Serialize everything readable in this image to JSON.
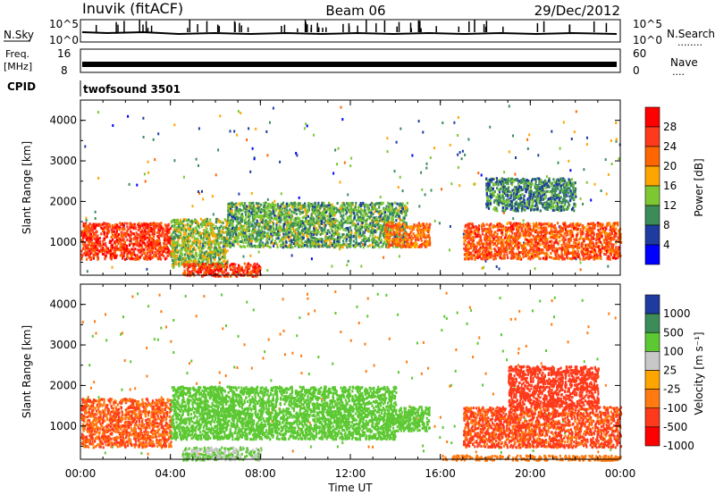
{
  "header": {
    "site": "Inuvik (fitACF)",
    "beam": "Beam 06",
    "date": "29/Dec/2012"
  },
  "left_labels": {
    "nsky": "N.Sky",
    "freq": "Freq.",
    "mhz": "[MHz]",
    "cpid": "CPID"
  },
  "right_labels": {
    "nsearch": "N.Search",
    "nsearch_dots": "........",
    "nave": "Nave",
    "nave_dots": "....",
    "nsky_top": "10^5",
    "nsky_bottom": "10^0",
    "nave_top": "60",
    "nave_bottom": "0"
  },
  "freq_ticks": {
    "top": "16",
    "bottom": "8"
  },
  "cpid_text": "twofsound 3501",
  "time_axis": {
    "label": "Time UT",
    "ticks": [
      "00:00",
      "04:00",
      "08:00",
      "12:00",
      "16:00",
      "20:00",
      "00:00"
    ]
  },
  "power_colorbar": {
    "label": "Power [dB]",
    "ticks": [
      "28",
      "24",
      "20",
      "16",
      "12",
      "8",
      "4"
    ],
    "colors": [
      "#ff0000",
      "#ff3a1a",
      "#ff6600",
      "#ffa500",
      "#7dc832",
      "#3c8c5a",
      "#1e3ca0",
      "#0000ff"
    ]
  },
  "velocity_colorbar": {
    "label": "Velocity [m s⁻¹]",
    "ticks": [
      "1000",
      "500",
      "100",
      "25",
      "-25",
      "-100",
      "-500",
      "-1000"
    ],
    "colors": [
      "#1e3ca0",
      "#3c8c5a",
      "#5cc832",
      "#c8c8c8",
      "#ffa500",
      "#ff7a10",
      "#ff3a1a",
      "#ff0000"
    ]
  },
  "chart_data": [
    {
      "type": "heatmap",
      "title": "Power",
      "xlabel": "Time UT",
      "ylabel": "Slant Range [km]",
      "x_range_hours": [
        0,
        24
      ],
      "ylim": [
        180,
        4500
      ],
      "y_ticks": [
        1000,
        2000,
        3000,
        4000
      ],
      "colorbar_label": "Power [dB]",
      "colorbar_ticks": [
        4,
        8,
        12,
        16,
        20,
        24,
        28
      ],
      "regions": [
        {
          "x": [
            0,
            4
          ],
          "y": [
            600,
            1500
          ],
          "value": 28
        },
        {
          "x": [
            4,
            6.5
          ],
          "y": [
            400,
            1600
          ],
          "value": 16
        },
        {
          "x": [
            4.5,
            8
          ],
          "y": [
            180,
            500
          ],
          "value": 28
        },
        {
          "x": [
            6.5,
            14.5
          ],
          "y": [
            900,
            2000
          ],
          "value": 14
        },
        {
          "x": [
            13.5,
            15.5
          ],
          "y": [
            900,
            1500
          ],
          "value": 24
        },
        {
          "x": [
            17,
            24
          ],
          "y": [
            600,
            1500
          ],
          "value": 26
        },
        {
          "x": [
            18,
            22
          ],
          "y": [
            1800,
            2600
          ],
          "value": 12
        }
      ]
    },
    {
      "type": "heatmap",
      "title": "Velocity",
      "xlabel": "Time UT",
      "ylabel": "Slant Range [km]",
      "x_range_hours": [
        0,
        24
      ],
      "ylim": [
        180,
        4500
      ],
      "y_ticks": [
        1000,
        2000,
        3000,
        4000
      ],
      "colorbar_label": "Velocity [m s⁻¹]",
      "colorbar_ticks": [
        1000,
        500,
        100,
        25,
        -25,
        -100,
        -500,
        -1000
      ],
      "regions": [
        {
          "x": [
            0,
            4
          ],
          "y": [
            500,
            1700
          ],
          "value": -100
        },
        {
          "x": [
            4,
            14
          ],
          "y": [
            700,
            2000
          ],
          "value": 300
        },
        {
          "x": [
            4.5,
            8
          ],
          "y": [
            180,
            500
          ],
          "value": 100
        },
        {
          "x": [
            14,
            15.5
          ],
          "y": [
            900,
            1500
          ],
          "value": 300
        },
        {
          "x": [
            16,
            24
          ],
          "y": [
            180,
            300
          ],
          "value": -60
        },
        {
          "x": [
            17,
            24
          ],
          "y": [
            500,
            1500
          ],
          "value": -120
        },
        {
          "x": [
            19,
            23
          ],
          "y": [
            1500,
            2500
          ],
          "value": -300
        }
      ]
    }
  ]
}
